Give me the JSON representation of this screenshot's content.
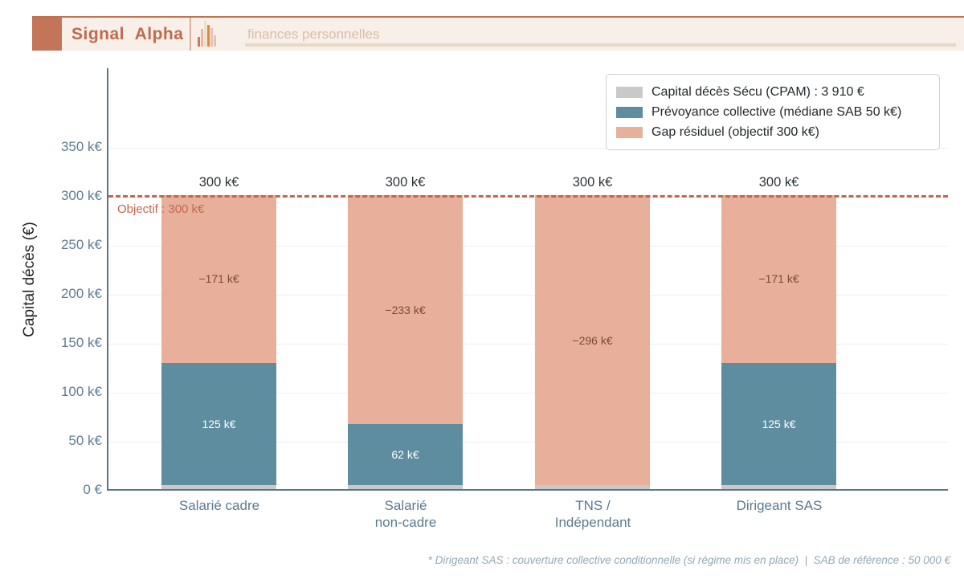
{
  "header": {
    "brand": "Signal Alpha",
    "nav_item": "finances personnelles"
  },
  "legend": {
    "items": [
      {
        "label": "Capital décès Sécu (CPAM) : 3 910 €",
        "color": "#c9c9c9"
      },
      {
        "label": "Prévoyance collective (médiane SAB 50 k€)",
        "color": "#5d8d9f"
      },
      {
        "label": "Gap résiduel (objectif 300 k€)",
        "color": "#e8b09a"
      }
    ]
  },
  "chart_data": {
    "type": "bar",
    "stacked": true,
    "ylabel": "Capital décès (€)",
    "categories": [
      "Salarié cadre",
      "Salarié non-cadre",
      "TNS / Indépendant",
      "Dirigeant SAS"
    ],
    "category_lines": [
      [
        "Salarié cadre",
        ""
      ],
      [
        "Salarié",
        "non-cadre"
      ],
      [
        "TNS /",
        "Indépendant"
      ],
      [
        "Dirigeant SAS",
        ""
      ]
    ],
    "series": [
      {
        "name": "Capital décès Sécu (CPAM) : 3 910 €",
        "color": "#c9c9c9",
        "values_k": [
          3.91,
          3.91,
          3.91,
          3.91
        ],
        "labels": [
          "",
          "",
          "",
          ""
        ]
      },
      {
        "name": "Prévoyance collective (médiane SAB 50 k€)",
        "color": "#5d8d9f",
        "values_k": [
          125,
          62.5,
          0,
          125
        ],
        "labels": [
          "125 k€",
          "62 k€",
          "",
          "125 k€"
        ]
      },
      {
        "name": "Gap résiduel (objectif 300 k€)",
        "color": "#e8b09a",
        "values_k": [
          171.09,
          233.59,
          296.09,
          171.09
        ],
        "labels": [
          "−171 k€",
          "−233 k€",
          "−296 k€",
          "−171 k€"
        ]
      }
    ],
    "bar_totals": [
      "300 k€",
      "300 k€",
      "300 k€",
      "300 k€"
    ],
    "yticks": [
      "0 €",
      "50 k€",
      "100 k€",
      "150 k€",
      "200 k€",
      "250 k€",
      "300 k€",
      "350 k€"
    ],
    "ylim_k": [
      0,
      430
    ],
    "grid": "horizontal",
    "legend_position": "upper right",
    "objective": {
      "value_k": 300,
      "label": "Objectif : 300 k€",
      "color": "#c2674b",
      "style": "dashed"
    }
  },
  "footer": {
    "note": "* Dirigeant SAS : couverture collective conditionnelle (si régime mis en place)  |  SAB de référence : 50 000 €"
  },
  "colors": {
    "accent_terracotta": "#c0714f",
    "header_background": "#f8efe8",
    "axis_spine": "#5a7482",
    "tick_text": "#5f7e92",
    "gap_label_text": "#7c4a36",
    "total_label_text": "#2d3339"
  }
}
